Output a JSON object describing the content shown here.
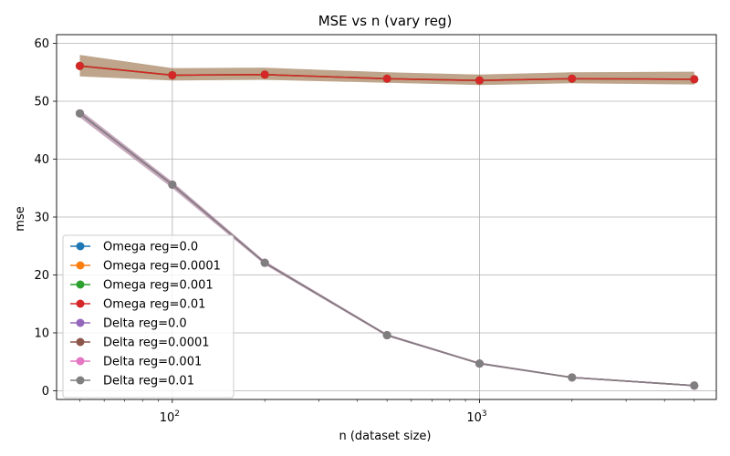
{
  "chart_data": {
    "type": "line",
    "title": "MSE vs n (vary reg)",
    "xlabel": "n (dataset size)",
    "ylabel": "mse",
    "xscale": "log",
    "xlim": [
      42,
      5900
    ],
    "ylim": [
      -1.5,
      61.5
    ],
    "grid": true,
    "legend_position": "lower-left",
    "x": [
      50,
      100,
      200,
      500,
      1000,
      2000,
      5000
    ],
    "x_ticks": [
      {
        "value": 100,
        "base": "10",
        "exp": "2"
      },
      {
        "value": 1000,
        "base": "10",
        "exp": "3"
      }
    ],
    "y_ticks": [
      0,
      10,
      20,
      30,
      40,
      50,
      60
    ],
    "series": [
      {
        "name": "Omega reg=0.0",
        "color": "#1f77b4",
        "values": [
          56.1,
          54.5,
          54.6,
          53.9,
          53.6,
          53.9,
          53.8
        ],
        "band_low": [
          54.3,
          53.6,
          53.7,
          53.2,
          52.8,
          53.1,
          52.9
        ],
        "band_high": [
          58.0,
          55.7,
          55.8,
          55.0,
          54.6,
          55.0,
          55.1
        ]
      },
      {
        "name": "Omega reg=0.0001",
        "color": "#ff7f0e",
        "values": [
          56.1,
          54.5,
          54.6,
          53.9,
          53.6,
          53.9,
          53.8
        ],
        "band_low": [
          54.3,
          53.6,
          53.7,
          53.2,
          52.8,
          53.1,
          52.9
        ],
        "band_high": [
          58.0,
          55.7,
          55.8,
          55.0,
          54.6,
          55.0,
          55.1
        ]
      },
      {
        "name": "Omega reg=0.001",
        "color": "#2ca02c",
        "values": [
          56.1,
          54.5,
          54.6,
          53.9,
          53.6,
          53.9,
          53.8
        ],
        "band_low": [
          54.3,
          53.6,
          53.7,
          53.2,
          52.8,
          53.1,
          52.9
        ],
        "band_high": [
          58.0,
          55.7,
          55.8,
          55.0,
          54.6,
          55.0,
          55.1
        ]
      },
      {
        "name": "Omega reg=0.01",
        "color": "#d62728",
        "values": [
          56.1,
          54.5,
          54.6,
          53.9,
          53.6,
          53.9,
          53.8
        ],
        "band_low": [
          54.3,
          53.6,
          53.7,
          53.2,
          52.8,
          53.1,
          52.9
        ],
        "band_high": [
          58.0,
          55.7,
          55.8,
          55.0,
          54.6,
          55.0,
          55.1
        ]
      },
      {
        "name": "Delta reg=0.0",
        "color": "#9467bd",
        "values": [
          47.9,
          35.6,
          22.1,
          9.6,
          4.7,
          2.3,
          0.9
        ],
        "band_low": [
          47.2,
          35.0,
          21.8,
          9.4,
          4.6,
          2.2,
          0.8
        ],
        "band_high": [
          48.5,
          36.1,
          22.4,
          9.8,
          4.9,
          2.4,
          1.0
        ]
      },
      {
        "name": "Delta reg=0.0001",
        "color": "#8c564b",
        "values": [
          47.9,
          35.6,
          22.1,
          9.6,
          4.7,
          2.3,
          0.9
        ],
        "band_low": [
          47.2,
          35.0,
          21.8,
          9.4,
          4.6,
          2.2,
          0.8
        ],
        "band_high": [
          48.5,
          36.1,
          22.4,
          9.8,
          4.9,
          2.4,
          1.0
        ]
      },
      {
        "name": "Delta reg=0.001",
        "color": "#e377c2",
        "values": [
          47.9,
          35.6,
          22.1,
          9.6,
          4.7,
          2.3,
          0.9
        ],
        "band_low": [
          47.2,
          35.0,
          21.8,
          9.4,
          4.6,
          2.2,
          0.8
        ],
        "band_high": [
          48.5,
          36.1,
          22.4,
          9.8,
          4.9,
          2.4,
          1.0
        ]
      },
      {
        "name": "Delta reg=0.01",
        "color": "#7f7f7f",
        "values": [
          47.9,
          35.6,
          22.1,
          9.6,
          4.7,
          2.3,
          0.9
        ],
        "band_low": [
          47.2,
          35.0,
          21.8,
          9.4,
          4.6,
          2.2,
          0.8
        ],
        "band_high": [
          48.5,
          36.1,
          22.4,
          9.8,
          4.9,
          2.4,
          1.0
        ]
      }
    ]
  }
}
